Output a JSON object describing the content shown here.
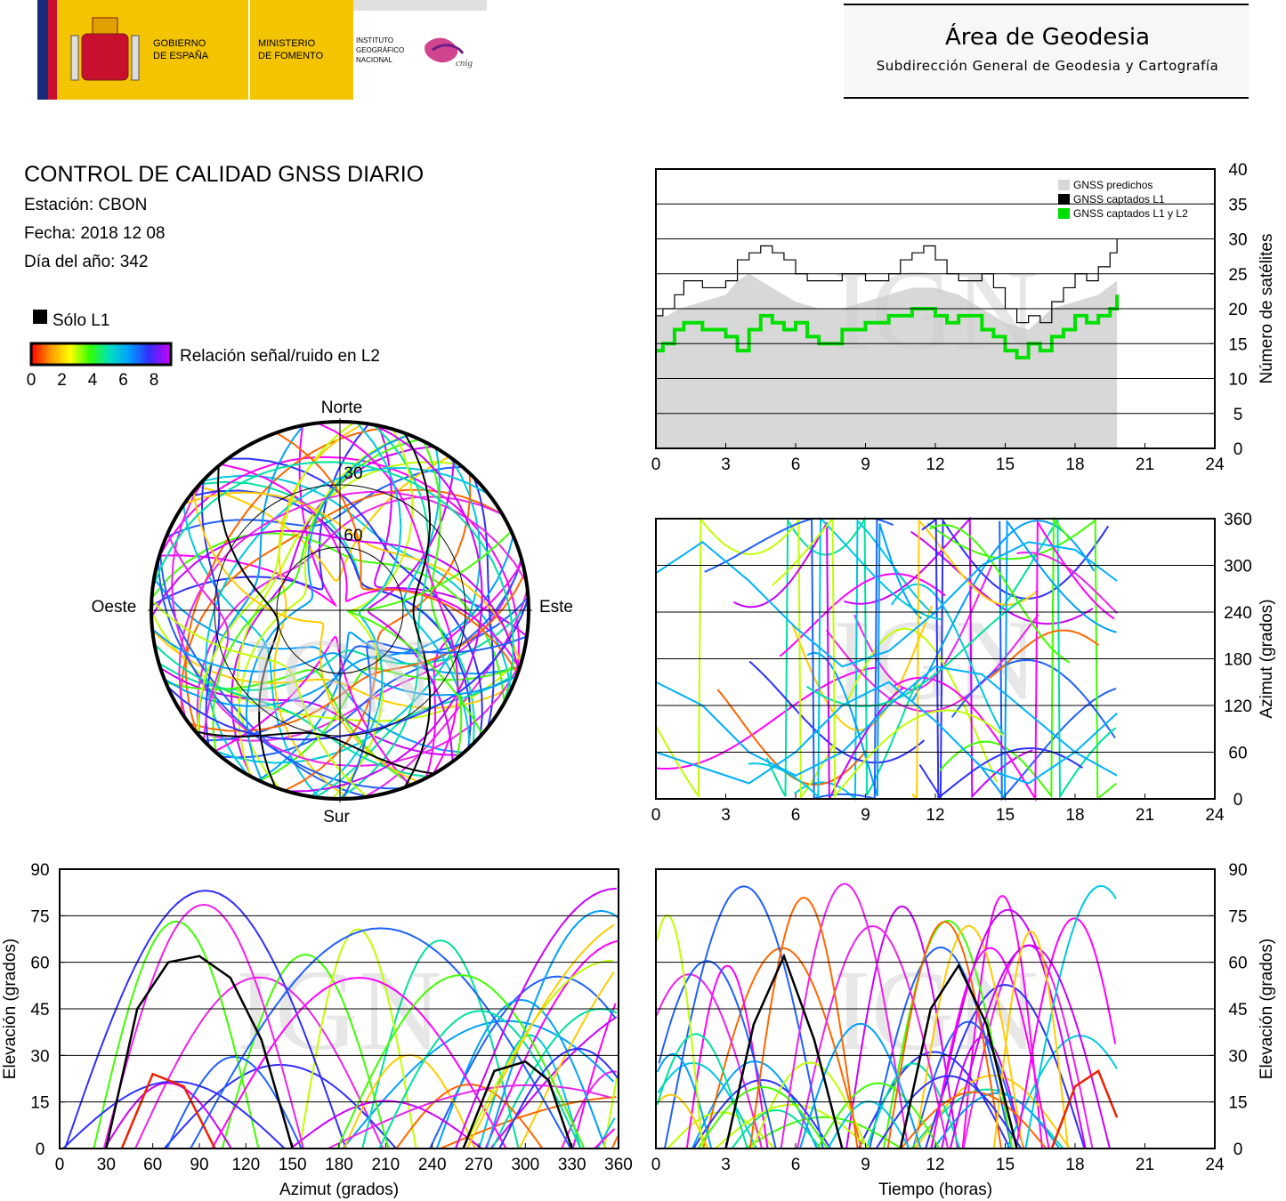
{
  "header": {
    "gov_line1": "GOBIERNO",
    "gov_line2": "DE ESPAÑA",
    "min_line1": "MINISTERIO",
    "min_line2": "DE FOMENTO",
    "ign_line1": "INSTITUTO",
    "ign_line2": "GEOGRÁFICO",
    "ign_line3": "NACIONAL",
    "cnig": "cnig",
    "area_title": "Área de Geodesia",
    "area_subtitle": "Subdirección General de Geodesia y Cartografía"
  },
  "report": {
    "title": "CONTROL DE CALIDAD GNSS DIARIO",
    "station": "Estación: CBON",
    "date": "Fecha: 2018 12 08",
    "doy": "Día del año: 342",
    "l1_only": "Sólo L1",
    "snr_label": "Relación señal/ruido en L2",
    "snr_ticks": [
      "0",
      "2",
      "4",
      "6",
      "8"
    ]
  },
  "colors": {
    "predicted": "#d8d8d8",
    "l1": "#000000",
    "l1l2": "#00e000",
    "watermark": "#cccccc"
  },
  "chart_data": [
    {
      "type": "area",
      "id": "satellite-count",
      "ylabel": "Número de satélites",
      "xlim": [
        0,
        24
      ],
      "ylim": [
        0,
        40
      ],
      "xticks": [
        0,
        3,
        6,
        9,
        12,
        15,
        18,
        21,
        24
      ],
      "yticks": [
        0,
        5,
        10,
        15,
        20,
        25,
        30,
        35,
        40
      ],
      "grid": true,
      "legend_position": "top-right",
      "watermark": "IGN",
      "series": [
        {
          "name": "GNSS predichos",
          "style": "area",
          "x": [
            0,
            0.5,
            1,
            2,
            3,
            3.5,
            4,
            5,
            6,
            7,
            8,
            9,
            10,
            11,
            12,
            13,
            14,
            15,
            16,
            17,
            18,
            19,
            19.8
          ],
          "y": [
            19,
            19,
            20,
            21,
            22,
            24,
            25,
            23,
            21,
            20,
            20,
            21,
            22,
            23,
            23,
            22,
            20,
            18,
            17,
            20,
            21,
            22,
            24
          ]
        },
        {
          "name": "GNSS captados L1",
          "style": "step",
          "x": [
            0,
            0.3,
            0.8,
            1.2,
            2,
            3,
            3.5,
            4,
            4.5,
            5,
            5.5,
            6,
            6.5,
            7,
            8,
            9,
            10,
            10.5,
            11,
            11.5,
            12,
            12.5,
            13,
            14,
            14.5,
            15,
            15.5,
            16,
            16.5,
            17,
            17.5,
            18,
            18.5,
            19,
            19.5,
            19.8
          ],
          "y": [
            19,
            20,
            22,
            24,
            23,
            24,
            27,
            28,
            29,
            28,
            27,
            25,
            24,
            24,
            25,
            24,
            25,
            27,
            28,
            29,
            27,
            25,
            24,
            25,
            23,
            20,
            18,
            19,
            18,
            21,
            23,
            25,
            24,
            26,
            28,
            30
          ]
        },
        {
          "name": "GNSS captados L1 y L2",
          "style": "step",
          "x": [
            0,
            0.3,
            0.8,
            1.2,
            2,
            3,
            3.5,
            4,
            4.5,
            5,
            5.5,
            6,
            6.5,
            7,
            8,
            9,
            10,
            10.5,
            11,
            11.5,
            12,
            12.5,
            13,
            14,
            14.5,
            15,
            15.5,
            16,
            16.5,
            17,
            17.5,
            18,
            18.5,
            19,
            19.5,
            19.8
          ],
          "y": [
            14,
            15,
            17,
            18,
            17,
            16,
            14,
            17,
            19,
            18,
            17,
            18,
            16,
            15,
            17,
            18,
            19,
            19,
            20,
            20,
            19,
            18,
            19,
            17,
            16,
            14,
            13,
            15,
            14,
            16,
            17,
            19,
            18,
            19,
            20,
            22
          ]
        }
      ]
    },
    {
      "type": "scatter",
      "id": "azimuth-vs-time",
      "ylabel": "Azimut (grados)",
      "xlim": [
        0,
        24
      ],
      "ylim": [
        0,
        360
      ],
      "xticks": [
        0,
        3,
        6,
        9,
        12,
        15,
        18,
        21,
        24
      ],
      "yticks": [
        0,
        60,
        120,
        180,
        240,
        300,
        360
      ],
      "grid": true,
      "watermark": "IGN",
      "series": [
        {
          "name": "",
          "x": [
            0,
            2,
            4,
            6,
            8,
            10,
            12,
            14,
            16,
            18,
            19.8
          ],
          "y": [
            290,
            330,
            280,
            220,
            170,
            190,
            240,
            300,
            330,
            320,
            280
          ]
        },
        {
          "name": "",
          "x": [
            0,
            2,
            4,
            6,
            8,
            10,
            12,
            14,
            16,
            18,
            19.8
          ],
          "y": [
            60,
            40,
            20,
            60,
            120,
            150,
            100,
            40,
            20,
            60,
            110
          ]
        },
        {
          "name": "",
          "x": [
            0,
            2,
            4,
            6,
            8,
            10,
            12,
            14,
            16,
            18,
            19.8
          ],
          "y": [
            150,
            120,
            60,
            30,
            60,
            120,
            170,
            160,
            110,
            60,
            30
          ]
        }
      ]
    },
    {
      "type": "scatter",
      "id": "elevation-vs-azimuth",
      "xlabel": "Azimut (grados)",
      "ylabel": "Elevación (grados)",
      "xlim": [
        0,
        360
      ],
      "ylim": [
        0,
        90
      ],
      "xticks": [
        0,
        30,
        60,
        90,
        120,
        150,
        180,
        210,
        240,
        270,
        300,
        330,
        360
      ],
      "yticks": [
        0,
        15,
        30,
        45,
        60,
        75,
        90
      ],
      "grid": true,
      "watermark": "IGN",
      "series": [
        {
          "name": "",
          "x": [
            30,
            50,
            70,
            90,
            110,
            130,
            150
          ],
          "y": [
            0,
            45,
            60,
            62,
            55,
            35,
            0
          ]
        },
        {
          "name": "",
          "x": [
            260,
            280,
            300,
            315,
            330
          ],
          "y": [
            0,
            25,
            28,
            22,
            0
          ]
        },
        {
          "name": "",
          "x": [
            40,
            60,
            80,
            100
          ],
          "y": [
            0,
            24,
            20,
            0
          ]
        }
      ]
    },
    {
      "type": "scatter",
      "id": "elevation-vs-time",
      "xlabel": "Tiempo (horas)",
      "ylabel": "Elevación (grados)",
      "xlim": [
        0,
        24
      ],
      "ylim": [
        0,
        90
      ],
      "xticks": [
        0,
        3,
        6,
        9,
        12,
        15,
        18,
        21,
        24
      ],
      "yticks": [
        0,
        15,
        30,
        45,
        60,
        75,
        90
      ],
      "grid": true,
      "watermark": "IGN",
      "series": [
        {
          "name": "",
          "x": [
            3,
            4.2,
            5.5,
            6.8,
            8
          ],
          "y": [
            0,
            40,
            62,
            35,
            0
          ]
        },
        {
          "name": "",
          "x": [
            10.5,
            11.8,
            13,
            14.2,
            15.5
          ],
          "y": [
            0,
            45,
            59,
            40,
            0
          ]
        },
        {
          "name": "",
          "x": [
            17,
            18,
            19,
            19.8
          ],
          "y": [
            0,
            20,
            25,
            10
          ]
        }
      ]
    },
    {
      "type": "scatter",
      "id": "skyplot",
      "labels": {
        "north": "Norte",
        "south": "Sur",
        "east": "Este",
        "west": "Oeste"
      },
      "rings": [
        "30",
        "60"
      ],
      "watermark": "IGN"
    }
  ]
}
